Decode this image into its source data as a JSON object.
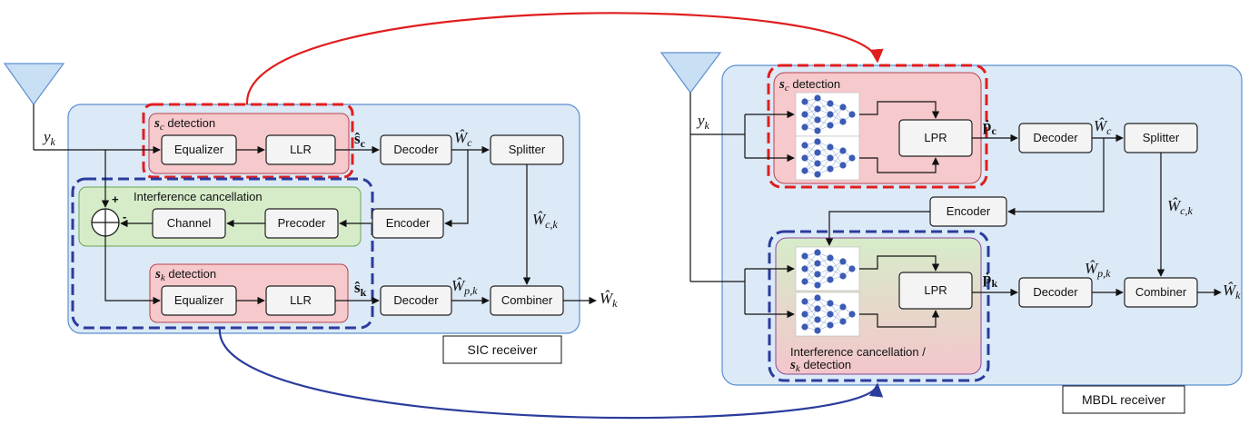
{
  "sic": {
    "title": "SIC receiver",
    "input": "y",
    "input_sub": "k",
    "sc_detection": {
      "symbol": "s",
      "sub": "c",
      "text": " detection"
    },
    "sk_detection": {
      "symbol": "s",
      "sub": "k",
      "text": " detection"
    },
    "interference": "Interference cancellation",
    "equalizer": "Equalizer",
    "llr": "LLR",
    "decoder": "Decoder",
    "splitter": "Splitter",
    "encoder": "Encoder",
    "precoder": "Precoder",
    "channel": "Channel",
    "combiner": "Combiner",
    "plus": "+",
    "minus": "-",
    "s_hat_c": "ŝ",
    "s_hat_c_sub": "c",
    "s_hat_k": "ŝ",
    "s_hat_k_sub": "k",
    "w_c": "Ŵ",
    "w_c_sub": "c",
    "w_ck": "Ŵ",
    "w_ck_sub": "c,k",
    "w_pk": "Ŵ",
    "w_pk_sub": "p,k",
    "w_k": "Ŵ",
    "w_k_sub": "k"
  },
  "mbdl": {
    "title": "MBDL receiver",
    "input": "y",
    "input_sub": "k",
    "sc_detection": {
      "symbol": "s",
      "sub": "c",
      "text": " detection"
    },
    "ic_label_1": "Interference cancellation /",
    "ic_label_2": {
      "symbol": "s",
      "sub": "k",
      "text": " detection"
    },
    "lpr": "LPR",
    "decoder": "Decoder",
    "splitter": "Splitter",
    "encoder": "Encoder",
    "combiner": "Combiner",
    "p_c": "ṗ",
    "p_c_sub": "c",
    "p_k": "ṗ",
    "p_k_sub": "k",
    "w_c": "Ŵ",
    "w_c_sub": "c",
    "w_ck": "Ŵ",
    "w_ck_sub": "c,k",
    "w_pk": "Ŵ",
    "w_pk_sub": "p,k",
    "w_k": "Ŵ",
    "w_k_sub": "k"
  },
  "colors": {
    "receiver_bg": "#dce9f7",
    "receiver_border": "#5b8fd1",
    "detection_bg": "#f6c9cc",
    "detection_border": "#b8434f",
    "interference_bg": "#d6ecc9",
    "interference_border": "#6aa84f",
    "red_link": "#e01e1e",
    "blue_link": "#2b3c9c"
  }
}
